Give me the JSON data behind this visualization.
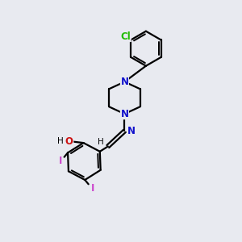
{
  "bg_color": "#e8eaf0",
  "bond_color": "#000000",
  "bond_width": 1.6,
  "atom_labels": {
    "Cl": {
      "color": "#22bb00",
      "fontsize": 8.5,
      "fontweight": "bold"
    },
    "N": {
      "color": "#1111cc",
      "fontsize": 8.5,
      "fontweight": "bold"
    },
    "O": {
      "color": "#cc1111",
      "fontsize": 8.5,
      "fontweight": "bold"
    },
    "H": {
      "color": "#000000",
      "fontsize": 7.5,
      "fontweight": "normal"
    },
    "I": {
      "color": "#cc44cc",
      "fontsize": 8.5,
      "fontweight": "bold"
    }
  },
  "figsize": [
    3.0,
    3.0
  ],
  "dpi": 100
}
